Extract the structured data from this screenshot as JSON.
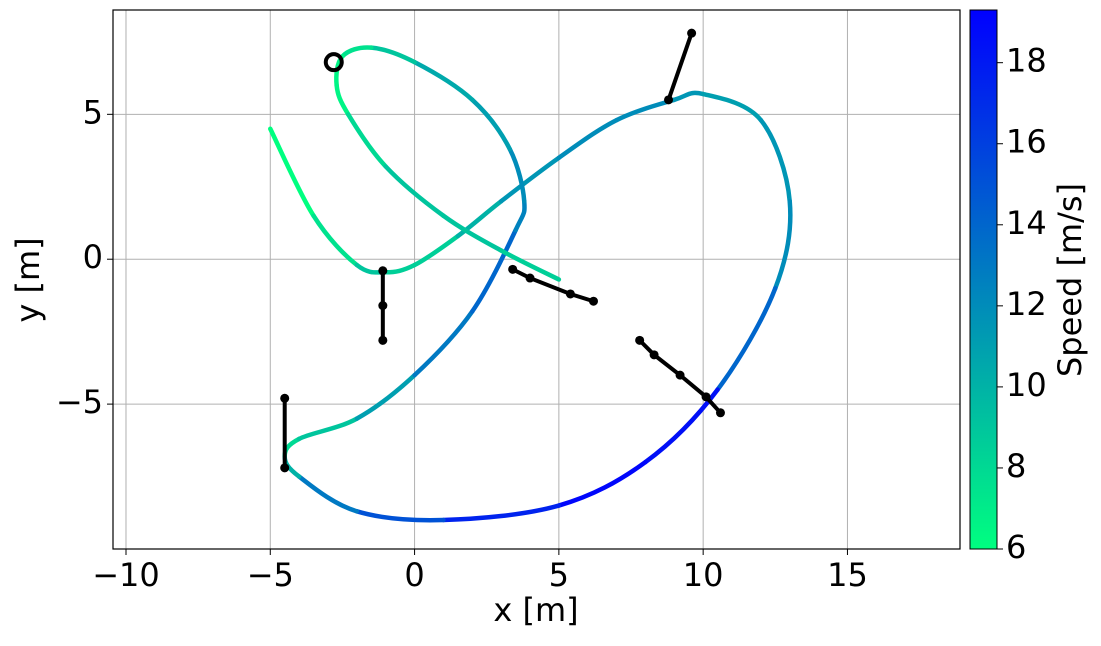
{
  "chart_data": {
    "type": "trajectory",
    "xlabel": "x [m]",
    "ylabel": "y [m]",
    "colorbar_label": "Speed [m/s]",
    "xlim": [
      -10.45,
      18.9
    ],
    "ylim": [
      -10,
      8.6
    ],
    "xticks": [
      {
        "value": -10,
        "label": "−10"
      },
      {
        "value": -5,
        "label": "−5"
      },
      0,
      5,
      10,
      15
    ],
    "yticks": [
      {
        "value": -5,
        "label": "−5"
      },
      0,
      5
    ],
    "grid": true,
    "clim": [
      6,
      19.3
    ],
    "cticks": [
      6,
      8,
      10,
      12,
      14,
      16,
      18
    ],
    "colormap": [
      "#00ff80",
      "#0000ff"
    ],
    "path": {
      "x": [
        -5,
        -3.5,
        -2,
        -1,
        0,
        1.5,
        3,
        5,
        7,
        9,
        10,
        12,
        13,
        12.5,
        10.5,
        8,
        5,
        1,
        -2,
        -4,
        -4.5,
        -4,
        -2,
        0,
        2,
        3.5,
        3.8,
        3.3,
        2,
        0,
        -1.5,
        -2.5,
        -2.7,
        -2.3,
        -1,
        1,
        3,
        5
      ],
      "y": [
        4.5,
        1.5,
        -0.2,
        -0.45,
        -0.2,
        0.8,
        2,
        3.5,
        4.8,
        5.5,
        5.7,
        4.8,
        2,
        -1,
        -4.5,
        -7,
        -8.5,
        -9,
        -8.7,
        -7.5,
        -6.8,
        -6.2,
        -5.5,
        -4,
        -1.8,
        1,
        2,
        3.8,
        5.5,
        6.8,
        7.3,
        7,
        6,
        5,
        3.2,
        1.5,
        0.3,
        -0.7
      ],
      "speed": [
        6,
        7.5,
        9,
        8.5,
        8.5,
        10,
        11.5,
        12,
        12,
        11.5,
        11,
        11.5,
        12,
        14,
        18.5,
        19,
        17.5,
        15,
        13,
        10,
        8,
        9,
        11,
        13,
        14,
        12.5,
        12,
        11,
        10.5,
        9,
        7.5,
        6.5,
        6.5,
        8,
        9,
        9,
        8.5,
        7.5
      ]
    },
    "start": {
      "x": -2.8,
      "y": 6.8
    },
    "segments": [
      {
        "x": [
          9.6,
          8.8
        ],
        "y": [
          7.8,
          5.5
        ]
      },
      {
        "x": [
          -1.1,
          -1.1,
          -1.1
        ],
        "y": [
          -0.4,
          -1.6,
          -2.8
        ]
      },
      {
        "x": [
          3.4,
          4,
          5.4,
          6.2
        ],
        "y": [
          -0.35,
          -0.65,
          -1.2,
          -1.45
        ]
      },
      {
        "x": [
          7.8,
          8.3,
          9.2,
          10.1,
          10.6
        ],
        "y": [
          -2.8,
          -3.3,
          -4.0,
          -4.75,
          -5.3
        ]
      },
      {
        "x": [
          -4.5,
          -4.5
        ],
        "y": [
          -4.8,
          -7.2
        ]
      }
    ]
  }
}
